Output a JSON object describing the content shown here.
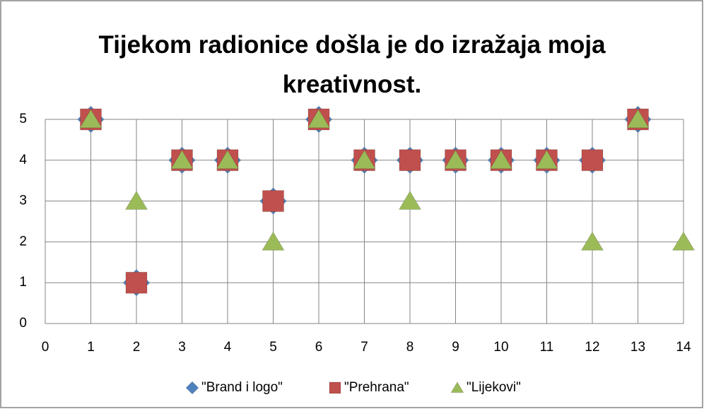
{
  "chart_data": {
    "type": "scatter",
    "title": "Tijekom radionice došla je do izražaja moja kreativnost.",
    "series": [
      {
        "name": "\"Brand i logo\"",
        "color": "#4f81bd",
        "marker": "diamond",
        "x": [
          1,
          2,
          3,
          4,
          5,
          6,
          7,
          8,
          9,
          10,
          11,
          12,
          13
        ],
        "values": [
          5,
          1,
          4,
          4,
          3,
          5,
          4,
          4,
          4,
          4,
          4,
          4,
          5
        ]
      },
      {
        "name": "\"Prehrana\"",
        "color": "#c0504d",
        "marker": "square",
        "x": [
          1,
          2,
          3,
          4,
          5,
          6,
          7,
          8,
          9,
          10,
          11,
          12,
          13
        ],
        "values": [
          5,
          1,
          4,
          4,
          3,
          5,
          4,
          4,
          4,
          4,
          4,
          4,
          5
        ]
      },
      {
        "name": "\"Lijekovi\"",
        "color": "#9bbb59",
        "marker": "triangle",
        "x": [
          1,
          2,
          3,
          4,
          5,
          6,
          7,
          8,
          9,
          10,
          11,
          12,
          13,
          14
        ],
        "values": [
          5,
          3,
          4,
          4,
          2,
          5,
          4,
          3,
          4,
          4,
          4,
          2,
          5,
          2
        ]
      }
    ],
    "xlim": [
      0,
      14
    ],
    "xticks": [
      0,
      1,
      2,
      3,
      4,
      5,
      6,
      7,
      8,
      9,
      10,
      11,
      12,
      13,
      14
    ],
    "ylim": [
      0,
      5
    ],
    "yticks": [
      0,
      1,
      2,
      3,
      4,
      5
    ],
    "grid": true,
    "legend": "bottom"
  }
}
